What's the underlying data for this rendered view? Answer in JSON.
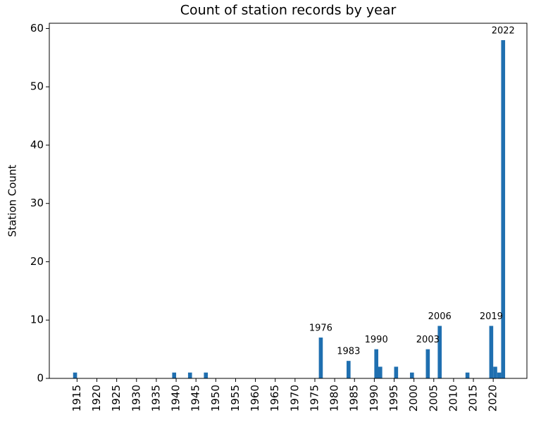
{
  "chart_data": {
    "type": "bar",
    "title": "Count of station records by year",
    "ylabel": "Station Count",
    "color": "#1f6fb0",
    "x": [
      1914,
      1939,
      1943,
      1947,
      1976,
      1983,
      1990,
      1991,
      1995,
      1999,
      2003,
      2006,
      2013,
      2019,
      2020,
      2021,
      2022
    ],
    "values": [
      1,
      1,
      1,
      1,
      7,
      3,
      5,
      2,
      2,
      1,
      5,
      9,
      1,
      9,
      2,
      1,
      58
    ],
    "annotations": [
      {
        "text": "1976",
        "x": 1976,
        "y": 7
      },
      {
        "text": "1983",
        "x": 1983,
        "y": 3
      },
      {
        "text": "1990",
        "x": 1990,
        "y": 5
      },
      {
        "text": "2003",
        "x": 2003,
        "y": 5
      },
      {
        "text": "2006",
        "x": 2006,
        "y": 9
      },
      {
        "text": "2019",
        "x": 2019,
        "y": 9
      },
      {
        "text": "2022",
        "x": 2022,
        "y": 58
      }
    ],
    "xlim": [
      1908,
      2028.5
    ],
    "ylim": [
      0,
      60.9
    ],
    "xticks": [
      1915,
      1920,
      1925,
      1930,
      1935,
      1940,
      1945,
      1950,
      1955,
      1960,
      1965,
      1970,
      1975,
      1980,
      1985,
      1990,
      1995,
      2000,
      2005,
      2010,
      2015,
      2020
    ],
    "yticks": [
      0,
      10,
      20,
      30,
      40,
      50,
      60
    ],
    "grid": false
  }
}
